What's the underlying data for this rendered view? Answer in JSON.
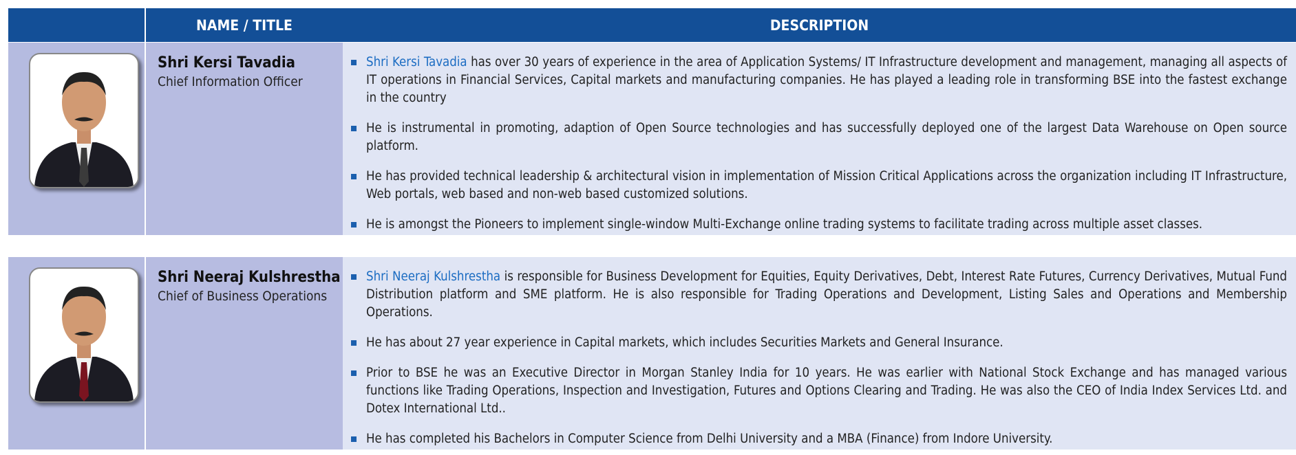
{
  "header": {
    "name_title": "NAME / TITLE",
    "description": "DESCRIPTION"
  },
  "rows": [
    {
      "name": "Shri Kersi Tavadia",
      "title": "Chief Information Officer",
      "lead": {
        "highlight": "Shri Kersi Tavadia",
        "text": " has over 30 years of experience in the area of Application Systems/ IT Infrastructure development and management, managing all aspects of IT operations in Financial Services, Capital markets and manufacturing companies. He has played a leading role in transforming BSE into the fastest exchange in the country"
      },
      "bullets": [
        "He is instrumental  in promoting, adaption of Open Source technologies and has successfully deployed one of the largest Data Warehouse on Open source platform.",
        "He has provided technical leadership & architectural vision in implementation of Mission Critical Applications across the organization including IT Infrastructure, Web portals, web based and non-web based customized solutions.",
        "He is amongst the Pioneers to implement single-window Multi-Exchange online trading systems to facilitate trading across multiple asset classes."
      ]
    },
    {
      "name": "Shri Neeraj Kulshrestha",
      "title": "Chief of Business Operations",
      "lead": {
        "highlight": "Shri Neeraj Kulshrestha",
        "text": " is responsible for Business Development for Equities, Equity Derivatives, Debt, Interest Rate Futures, Currency Derivatives, Mutual Fund Distribution platform and SME platform. He is also responsible for Trading Operations and Development, Listing Sales and Operations and Membership Operations."
      },
      "bullets": [
        "He has about 27 year experience in Capital markets, which includes Securities Markets and General Insurance.",
        "Prior to BSE he was an Executive Director in Morgan Stanley India for 10 years. He was earlier with National Stock Exchange and has managed various functions like Trading Operations, Inspection and Investigation, Futures and Options Clearing and Trading. He was also the CEO of India Index Services Ltd. and Dotex International Ltd..",
        "He has completed his Bachelors in Computer Science from Delhi University and a MBA (Finance) from Indore University."
      ]
    }
  ]
}
